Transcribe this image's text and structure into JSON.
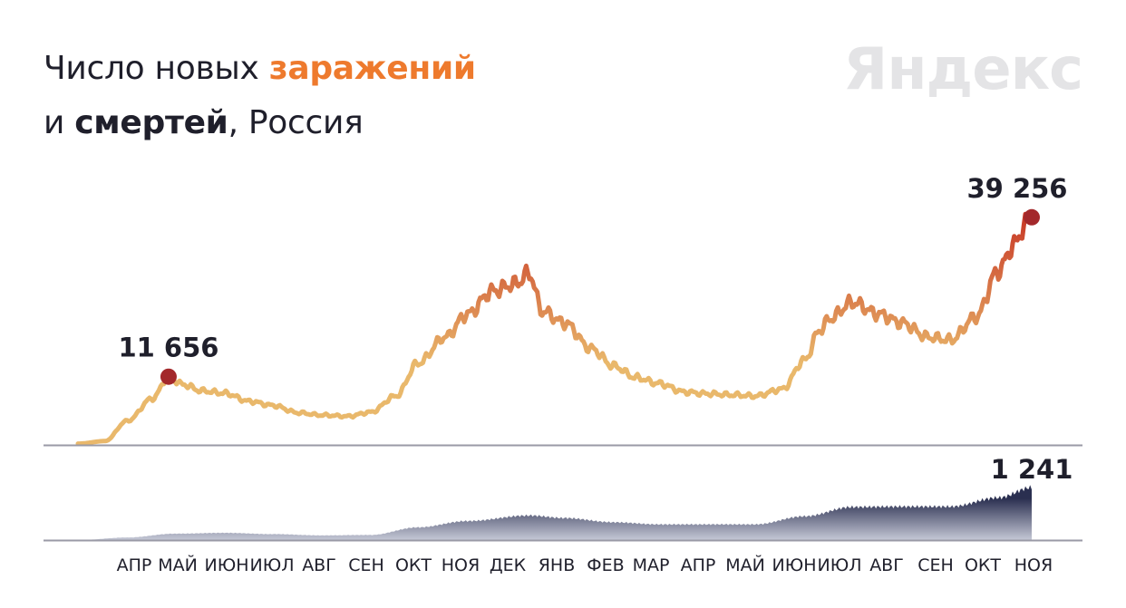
{
  "header": {
    "title_part1": "Число новых ",
    "title_infections": "заражений",
    "title_part2": "и ",
    "title_deaths": "смертей",
    "title_part3": ", Россия",
    "logo": "Яндекс"
  },
  "colors": {
    "infections_low": "#e9b86b",
    "infections_high": "#c73524",
    "marker": "#a3282b",
    "deaths_fill_top": "#2a2f50",
    "deaths_fill_bottom": "#c5c8d6",
    "baseline": "#9a9aa6"
  },
  "chart_data": [
    {
      "type": "line",
      "series": [
        {
          "name": "заражений",
          "x": [
            "2020-03-15",
            "2020-04-01",
            "2020-04-15",
            "2020-05-01",
            "2020-05-11",
            "2020-05-20",
            "2020-06-01",
            "2020-06-15",
            "2020-07-01",
            "2020-07-15",
            "2020-08-01",
            "2020-08-15",
            "2020-09-01",
            "2020-09-15",
            "2020-10-01",
            "2020-10-15",
            "2020-11-01",
            "2020-11-15",
            "2020-12-01",
            "2020-12-15",
            "2020-12-24",
            "2021-01-01",
            "2021-01-15",
            "2021-02-01",
            "2021-02-15",
            "2021-03-01",
            "2021-03-15",
            "2021-04-01",
            "2021-04-15",
            "2021-05-01",
            "2021-05-15",
            "2021-06-01",
            "2021-06-15",
            "2021-06-25",
            "2021-07-01",
            "2021-07-15",
            "2021-08-01",
            "2021-08-15",
            "2021-09-01",
            "2021-09-15",
            "2021-10-01",
            "2021-10-15",
            "2021-10-25",
            "2021-11-01",
            "2021-11-05"
          ],
          "values": [
            60,
            500,
            4000,
            7900,
            11656,
            10300,
            9200,
            8800,
            7400,
            6700,
            5400,
            5000,
            4800,
            5500,
            8300,
            14000,
            18500,
            22500,
            26500,
            27700,
            29500,
            23000,
            21000,
            16500,
            13500,
            11500,
            10500,
            9000,
            8700,
            8500,
            8300,
            9500,
            14500,
            19800,
            21700,
            24500,
            22500,
            21000,
            18500,
            18000,
            22000,
            30000,
            34500,
            38000,
            39256
          ]
        }
      ],
      "peak_labels": [
        {
          "value_text": "11 656",
          "x": "2020-05-11",
          "y": 11656
        },
        {
          "value_text": "39 256",
          "x": "2021-11-05",
          "y": 39256
        }
      ],
      "ylim": [
        0,
        42000
      ]
    },
    {
      "type": "area",
      "series": [
        {
          "name": "смертей",
          "x": [
            "2020-03-15",
            "2020-04-15",
            "2020-05-15",
            "2020-06-15",
            "2020-07-15",
            "2020-08-15",
            "2020-09-15",
            "2020-10-15",
            "2020-11-15",
            "2020-12-24",
            "2021-01-15",
            "2021-02-15",
            "2021-03-15",
            "2021-04-15",
            "2021-05-15",
            "2021-06-15",
            "2021-07-15",
            "2021-08-15",
            "2021-09-15",
            "2021-10-15",
            "2021-11-05"
          ],
          "values": [
            0,
            60,
            150,
            170,
            140,
            110,
            120,
            300,
            450,
            580,
            520,
            420,
            370,
            370,
            370,
            560,
            780,
            790,
            790,
            1000,
            1241
          ]
        }
      ],
      "peak_labels": [
        {
          "value_text": "1 241",
          "x": "2021-11-05",
          "y": 1241
        }
      ],
      "ylim": [
        0,
        2200
      ]
    }
  ],
  "x_axis": {
    "months": [
      "АПР",
      "МАЙ",
      "ИЮН",
      "ИЮЛ",
      "АВГ",
      "СЕН",
      "ОКТ",
      "НОЯ",
      "ДЕК",
      "ЯНВ",
      "ФЕВ",
      "МАР",
      "АПР",
      "МАЙ",
      "ИЮН",
      "ИЮЛ",
      "АВГ",
      "СЕН",
      "ОКТ",
      "НОЯ"
    ]
  }
}
